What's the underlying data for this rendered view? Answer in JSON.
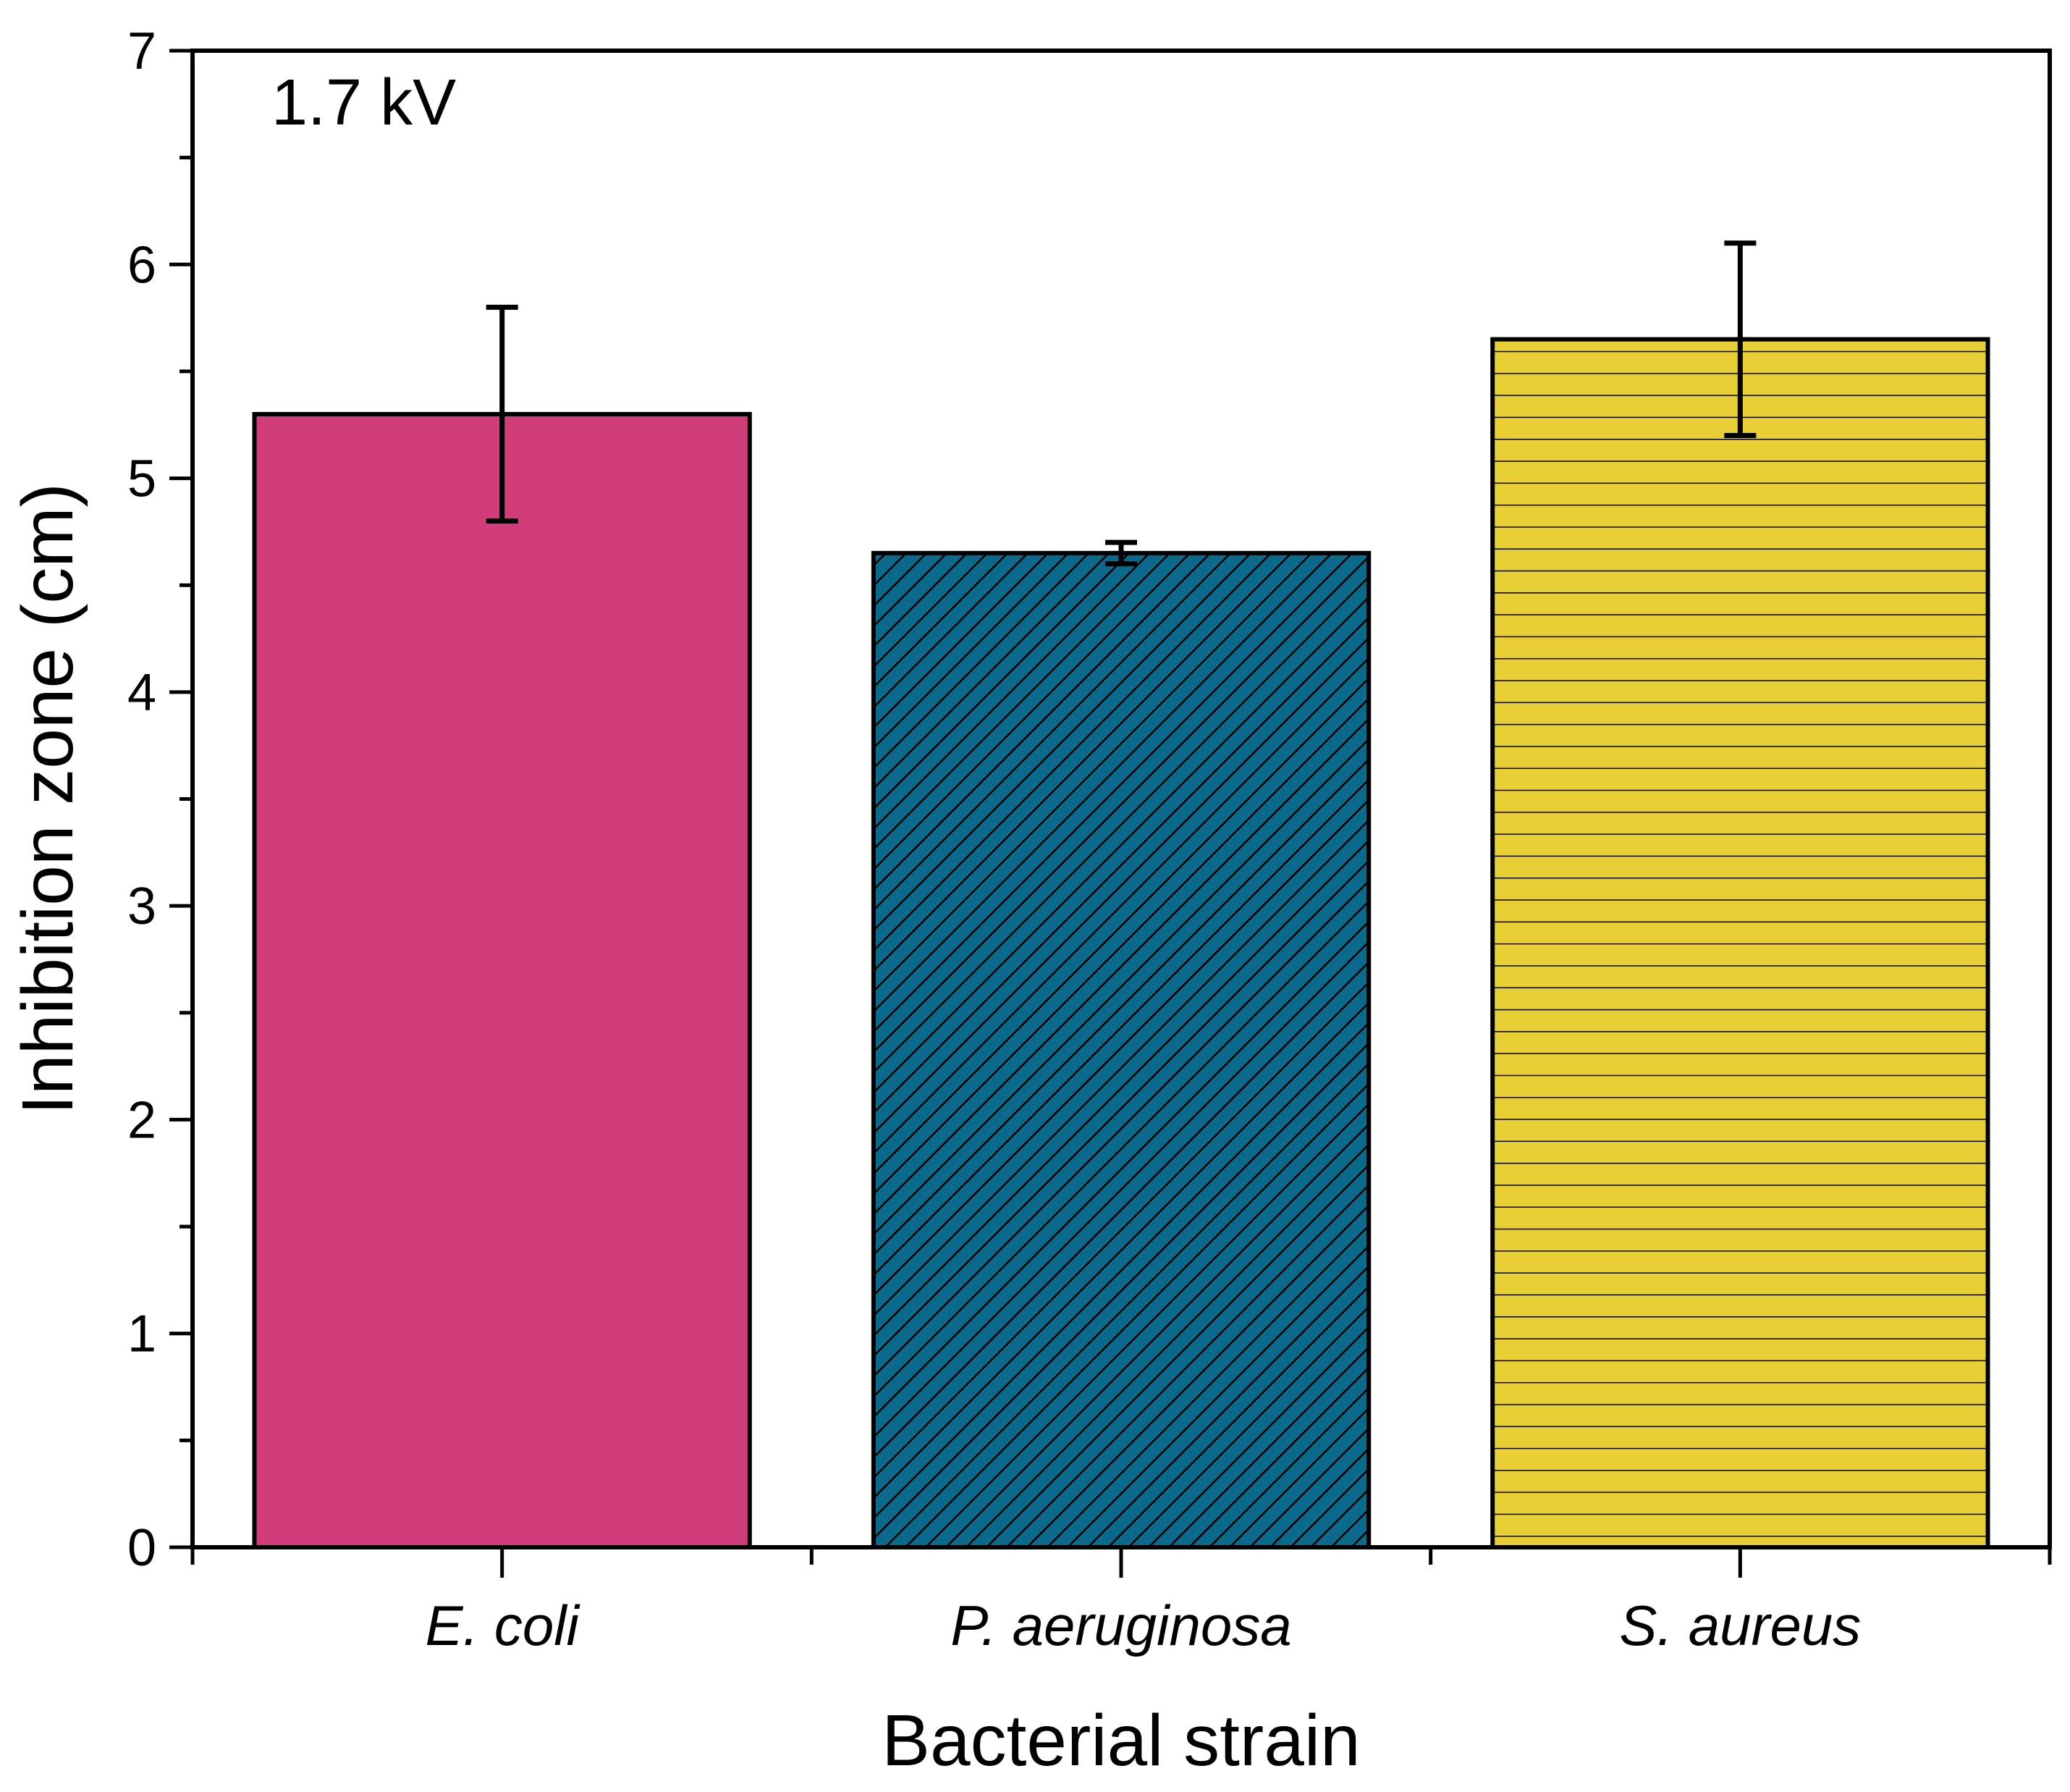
{
  "chart_data": {
    "type": "bar",
    "title": "",
    "annotation": "1.7 kV",
    "xlabel": "Bacterial strain",
    "ylabel": "Inhibition zone (cm)",
    "ylim": [
      0,
      7
    ],
    "yticks": [
      "0",
      "1",
      "2",
      "3",
      "4",
      "5",
      "6",
      "7"
    ],
    "grid": false,
    "categories": [
      "E. coli",
      "P. aeruginosa",
      "S. aureus"
    ],
    "values": [
      5.3,
      4.65,
      5.65
    ],
    "errors": [
      0.5,
      0.05,
      0.45
    ],
    "colors": [
      "#d03d7a",
      "#0b6a8c",
      "#e8cf35"
    ],
    "patterns": [
      "solid",
      "diagonal-hatch",
      "horizontal-hatch"
    ]
  }
}
